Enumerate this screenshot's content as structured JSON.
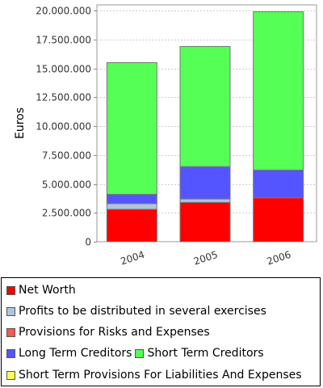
{
  "chart_data": {
    "type": "bar",
    "stacked": true,
    "categories": [
      "2004",
      "2005",
      "2006"
    ],
    "ylabel": "Euros",
    "ylim": [
      0,
      20500000
    ],
    "yticks": [
      {
        "value": 0,
        "label": "0"
      },
      {
        "value": 2500000,
        "label": "2.500.000"
      },
      {
        "value": 5000000,
        "label": "5.000.000"
      },
      {
        "value": 7500000,
        "label": "7.500.000"
      },
      {
        "value": 10000000,
        "label": "10.000.000"
      },
      {
        "value": 12500000,
        "label": "12.500.000"
      },
      {
        "value": 15000000,
        "label": "15.000.000"
      },
      {
        "value": 17500000,
        "label": "17.500.000"
      },
      {
        "value": 20000000,
        "label": "20.000.000"
      }
    ],
    "grid": true,
    "series": [
      {
        "name": "Net Worth",
        "color": "#ff0000",
        "values": [
          2800000,
          3400000,
          3800000
        ]
      },
      {
        "name": "Profits to be distributed in several exercises",
        "color": "#b0c4de",
        "values": [
          500000,
          300000,
          0
        ]
      },
      {
        "name": "Provisions for Risks and Expenses",
        "color": "#ff5555",
        "values": [
          0,
          0,
          0
        ]
      },
      {
        "name": "Long Term Creditors",
        "color": "#5555ff",
        "values": [
          800000,
          2800000,
          2400000
        ]
      },
      {
        "name": "Short Term Creditors",
        "color": "#55ff55",
        "values": [
          11400000,
          10400000,
          13700000
        ]
      },
      {
        "name": "Short Term Provisions For Liabilities And Expenses",
        "color": "#ffff55",
        "values": [
          0,
          0,
          0
        ]
      }
    ],
    "legend_position": "bottom"
  },
  "legend": {
    "rows": [
      [
        "Net Worth"
      ],
      [
        "Profits to be distributed in several exercises"
      ],
      [
        "Provisions for Risks and Expenses"
      ],
      [
        "Long Term Creditors",
        "Short Term Creditors"
      ],
      [
        "Short Term Provisions For Liabilities And Expenses"
      ]
    ]
  }
}
